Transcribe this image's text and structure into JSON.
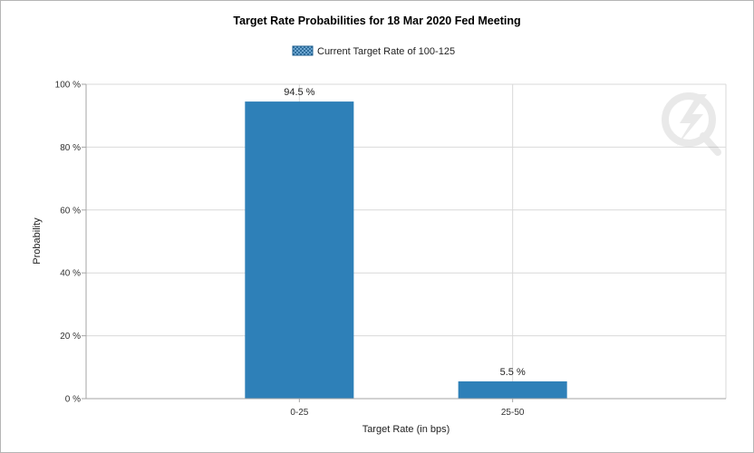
{
  "chart_data": {
    "type": "bar",
    "title": "Target Rate Probabilities for 18 Mar 2020 Fed Meeting",
    "xlabel": "Target Rate (in bps)",
    "ylabel": "Probability",
    "categories": [
      "0-25",
      "25-50"
    ],
    "series": [
      {
        "name": "Current Target Rate of 100-125",
        "values": [
          94.5,
          5.5
        ],
        "color": "#2e80b8"
      }
    ],
    "data_labels": [
      "94.5 %",
      "5.5 %"
    ],
    "ylim": [
      0,
      100
    ],
    "y_ticks": [
      {
        "value": 0,
        "label": "0 %"
      },
      {
        "value": 20,
        "label": "20 %"
      },
      {
        "value": 40,
        "label": "40 %"
      },
      {
        "value": 60,
        "label": "60 %"
      },
      {
        "value": 80,
        "label": "80 %"
      },
      {
        "value": 100,
        "label": "100 %"
      }
    ],
    "grid": true,
    "legend_position": "top-center"
  },
  "colors": {
    "bar": "#2e80b8",
    "grid": "#d9d9d9",
    "axis": "#a6a6a6"
  },
  "icons": {
    "watermark": "lightning-q-logo"
  }
}
